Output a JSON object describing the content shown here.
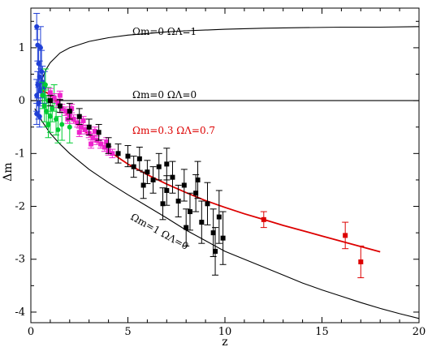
{
  "chart_data": {
    "type": "scatter",
    "xlabel": "z",
    "ylabel": "Δm",
    "xlim": [
      0,
      20
    ],
    "ylim": [
      -4.2,
      1.75
    ],
    "x_ticks": [
      0,
      5,
      10,
      15,
      20
    ],
    "y_ticks": [
      1,
      0,
      -1,
      -2,
      -3,
      -4
    ],
    "x_tick_labels": [
      "0",
      "5",
      "10",
      "15",
      "20"
    ],
    "y_tick_labels": [
      "1",
      "0",
      "-1",
      "-2",
      "-3",
      "-4"
    ],
    "grid": false,
    "curves": [
      {
        "label": "Ωm=0 ΩΛ=1",
        "color": "#000000",
        "points": [
          [
            0.3,
            0.0
          ],
          [
            0.5,
            0.35
          ],
          [
            0.8,
            0.6
          ],
          [
            1,
            0.72
          ],
          [
            1.5,
            0.9
          ],
          [
            2,
            1.0
          ],
          [
            3,
            1.12
          ],
          [
            4,
            1.19
          ],
          [
            5,
            1.24
          ],
          [
            6,
            1.27
          ],
          [
            7,
            1.3
          ],
          [
            8,
            1.32
          ],
          [
            10,
            1.35
          ],
          [
            12,
            1.37
          ],
          [
            14,
            1.38
          ],
          [
            16,
            1.39
          ],
          [
            18,
            1.39
          ],
          [
            20,
            1.4
          ]
        ]
      },
      {
        "label": "Ωm=0 ΩΛ=0",
        "color": "#000000",
        "points": [
          [
            0,
            0
          ],
          [
            20,
            0
          ]
        ]
      },
      {
        "label": "Ωm=1 ΩΛ=0",
        "color": "#000000",
        "points": [
          [
            0.2,
            -0.15
          ],
          [
            0.5,
            -0.35
          ],
          [
            1,
            -0.62
          ],
          [
            1.5,
            -0.82
          ],
          [
            2,
            -1.0
          ],
          [
            3,
            -1.3
          ],
          [
            4,
            -1.55
          ],
          [
            5,
            -1.78
          ],
          [
            6,
            -2.0
          ],
          [
            7,
            -2.22
          ],
          [
            8,
            -2.45
          ],
          [
            9,
            -2.65
          ],
          [
            10,
            -2.85
          ],
          [
            11,
            -3.0
          ],
          [
            12,
            -3.15
          ],
          [
            13,
            -3.3
          ],
          [
            14,
            -3.45
          ],
          [
            15,
            -3.58
          ],
          [
            16,
            -3.7
          ],
          [
            17,
            -3.82
          ],
          [
            18,
            -3.93
          ],
          [
            19,
            -4.03
          ],
          [
            20,
            -4.12
          ]
        ]
      },
      {
        "label": "Ωm=0.3 ΩΛ=0.7",
        "color": "#dd0000",
        "points": [
          [
            0.5,
            0.2
          ],
          [
            1,
            0.12
          ],
          [
            1.5,
            -0.1
          ],
          [
            2,
            -0.3
          ],
          [
            3,
            -0.65
          ],
          [
            4,
            -0.95
          ],
          [
            5,
            -1.2
          ],
          [
            6,
            -1.4
          ],
          [
            7,
            -1.58
          ],
          [
            8,
            -1.74
          ],
          [
            9,
            -1.89
          ],
          [
            10,
            -2.02
          ],
          [
            11,
            -2.14
          ],
          [
            12,
            -2.25
          ],
          [
            13,
            -2.36
          ],
          [
            14,
            -2.46
          ],
          [
            15,
            -2.56
          ],
          [
            16,
            -2.66
          ],
          [
            17,
            -2.76
          ],
          [
            18,
            -2.86
          ]
        ]
      }
    ],
    "series": [
      {
        "color": "#1f3fd6",
        "points": [
          {
            "x": 0.3,
            "y": 1.4,
            "err": 0.25
          },
          {
            "x": 0.35,
            "y": 1.05,
            "err": 0.3
          },
          {
            "x": 0.4,
            "y": 0.7,
            "err": 0.35
          },
          {
            "x": 0.45,
            "y": 0.45,
            "err": 0.3
          },
          {
            "x": 0.35,
            "y": 0.3,
            "err": 0.25
          },
          {
            "x": 0.3,
            "y": 0.1,
            "err": 0.3
          },
          {
            "x": 0.4,
            "y": -0.05,
            "err": 0.3
          },
          {
            "x": 0.3,
            "y": -0.25,
            "err": 0.2
          },
          {
            "x": 0.5,
            "y": 0.2,
            "err": 0.25
          },
          {
            "x": 0.55,
            "y": 0.55,
            "err": 0.4
          },
          {
            "x": 0.6,
            "y": 0.35,
            "err": 0.3
          },
          {
            "x": 0.45,
            "y": -0.3,
            "err": 0.2
          },
          {
            "x": 0.7,
            "y": 0.25,
            "err": 0.3
          },
          {
            "x": 0.5,
            "y": 1.0,
            "err": 0.4
          }
        ]
      },
      {
        "color": "#00cc33",
        "points": [
          {
            "x": 0.6,
            "y": 0.1,
            "err": 0.25
          },
          {
            "x": 0.7,
            "y": -0.1,
            "err": 0.3
          },
          {
            "x": 0.8,
            "y": -0.2,
            "err": 0.3
          },
          {
            "x": 0.9,
            "y": 0.0,
            "err": 0.25
          },
          {
            "x": 1.0,
            "y": -0.3,
            "err": 0.3
          },
          {
            "x": 1.1,
            "y": -0.15,
            "err": 0.25
          },
          {
            "x": 1.3,
            "y": -0.35,
            "err": 0.3
          },
          {
            "x": 1.6,
            "y": -0.45,
            "err": 0.3
          },
          {
            "x": 0.75,
            "y": 0.3,
            "err": 0.3
          },
          {
            "x": 1.2,
            "y": 0.05,
            "err": 0.25
          },
          {
            "x": 2.0,
            "y": -0.5,
            "err": 0.3
          },
          {
            "x": 1.4,
            "y": -0.55,
            "err": 0.25
          },
          {
            "x": 0.9,
            "y": -0.45,
            "err": 0.25
          }
        ]
      },
      {
        "color": "#ee22cc",
        "points": [
          {
            "x": 1.0,
            "y": 0.15,
            "err": 0.08
          },
          {
            "x": 1.2,
            "y": 0.05,
            "err": 0.08
          },
          {
            "x": 1.4,
            "y": -0.05,
            "err": 0.08
          },
          {
            "x": 1.6,
            "y": -0.15,
            "err": 0.08
          },
          {
            "x": 1.8,
            "y": -0.2,
            "err": 0.08
          },
          {
            "x": 2.0,
            "y": -0.28,
            "err": 0.08
          },
          {
            "x": 2.2,
            "y": -0.35,
            "err": 0.08
          },
          {
            "x": 2.4,
            "y": -0.42,
            "err": 0.08
          },
          {
            "x": 2.6,
            "y": -0.5,
            "err": 0.08
          },
          {
            "x": 2.8,
            "y": -0.55,
            "err": 0.08
          },
          {
            "x": 3.0,
            "y": -0.62,
            "err": 0.08
          },
          {
            "x": 3.2,
            "y": -0.7,
            "err": 0.08
          },
          {
            "x": 3.4,
            "y": -0.75,
            "err": 0.08
          },
          {
            "x": 3.6,
            "y": -0.82,
            "err": 0.08
          },
          {
            "x": 3.8,
            "y": -0.88,
            "err": 0.08
          },
          {
            "x": 4.0,
            "y": -0.95,
            "err": 0.08
          },
          {
            "x": 4.2,
            "y": -1.0,
            "err": 0.08
          },
          {
            "x": 1.5,
            "y": 0.1,
            "err": 0.08
          },
          {
            "x": 2.1,
            "y": -0.15,
            "err": 0.08
          },
          {
            "x": 2.7,
            "y": -0.38,
            "err": 0.08
          },
          {
            "x": 3.3,
            "y": -0.58,
            "err": 0.08
          },
          {
            "x": 3.9,
            "y": -0.78,
            "err": 0.08
          },
          {
            "x": 1.9,
            "y": -0.35,
            "err": 0.08
          },
          {
            "x": 2.5,
            "y": -0.6,
            "err": 0.08
          },
          {
            "x": 3.1,
            "y": -0.82,
            "err": 0.08
          }
        ]
      },
      {
        "color": "#000000",
        "points": [
          {
            "x": 1.0,
            "y": 0.0,
            "err": 0.1
          },
          {
            "x": 1.5,
            "y": -0.1,
            "err": 0.12
          },
          {
            "x": 2.0,
            "y": -0.2,
            "err": 0.15
          },
          {
            "x": 2.5,
            "y": -0.3,
            "err": 0.15
          },
          {
            "x": 3.0,
            "y": -0.5,
            "err": 0.15
          },
          {
            "x": 3.5,
            "y": -0.6,
            "err": 0.15
          },
          {
            "x": 4.0,
            "y": -0.85,
            "err": 0.15
          },
          {
            "x": 4.5,
            "y": -1.0,
            "err": 0.18
          },
          {
            "x": 5.0,
            "y": -1.05,
            "err": 0.2
          },
          {
            "x": 5.3,
            "y": -1.25,
            "err": 0.2
          },
          {
            "x": 5.6,
            "y": -1.1,
            "err": 0.22
          },
          {
            "x": 6.0,
            "y": -1.35,
            "err": 0.22
          },
          {
            "x": 6.3,
            "y": -1.5,
            "err": 0.25
          },
          {
            "x": 6.6,
            "y": -1.25,
            "err": 0.25
          },
          {
            "x": 7.0,
            "y": -1.7,
            "err": 0.28
          },
          {
            "x": 7.3,
            "y": -1.45,
            "err": 0.3
          },
          {
            "x": 7.6,
            "y": -1.9,
            "err": 0.3
          },
          {
            "x": 7.9,
            "y": -1.6,
            "err": 0.3
          },
          {
            "x": 8.2,
            "y": -2.1,
            "err": 0.35
          },
          {
            "x": 8.5,
            "y": -1.75,
            "err": 0.35
          },
          {
            "x": 8.8,
            "y": -2.3,
            "err": 0.4
          },
          {
            "x": 9.1,
            "y": -1.95,
            "err": 0.4
          },
          {
            "x": 9.4,
            "y": -2.5,
            "err": 0.45
          },
          {
            "x": 9.7,
            "y": -2.2,
            "err": 0.5
          },
          {
            "x": 9.5,
            "y": -2.85,
            "err": 0.45
          },
          {
            "x": 8.0,
            "y": -2.4,
            "err": 0.35
          },
          {
            "x": 6.8,
            "y": -1.95,
            "err": 0.3
          },
          {
            "x": 5.8,
            "y": -1.6,
            "err": 0.25
          },
          {
            "x": 9.9,
            "y": -2.6,
            "err": 0.5
          },
          {
            "x": 7.0,
            "y": -1.2,
            "err": 0.3
          },
          {
            "x": 8.6,
            "y": -1.5,
            "err": 0.35
          }
        ]
      },
      {
        "color": "#dd0000",
        "points": [
          {
            "x": 12.0,
            "y": -2.25,
            "err": 0.15
          },
          {
            "x": 16.2,
            "y": -2.55,
            "err": 0.25
          },
          {
            "x": 17.0,
            "y": -3.05,
            "err": 0.3
          }
        ]
      }
    ]
  }
}
